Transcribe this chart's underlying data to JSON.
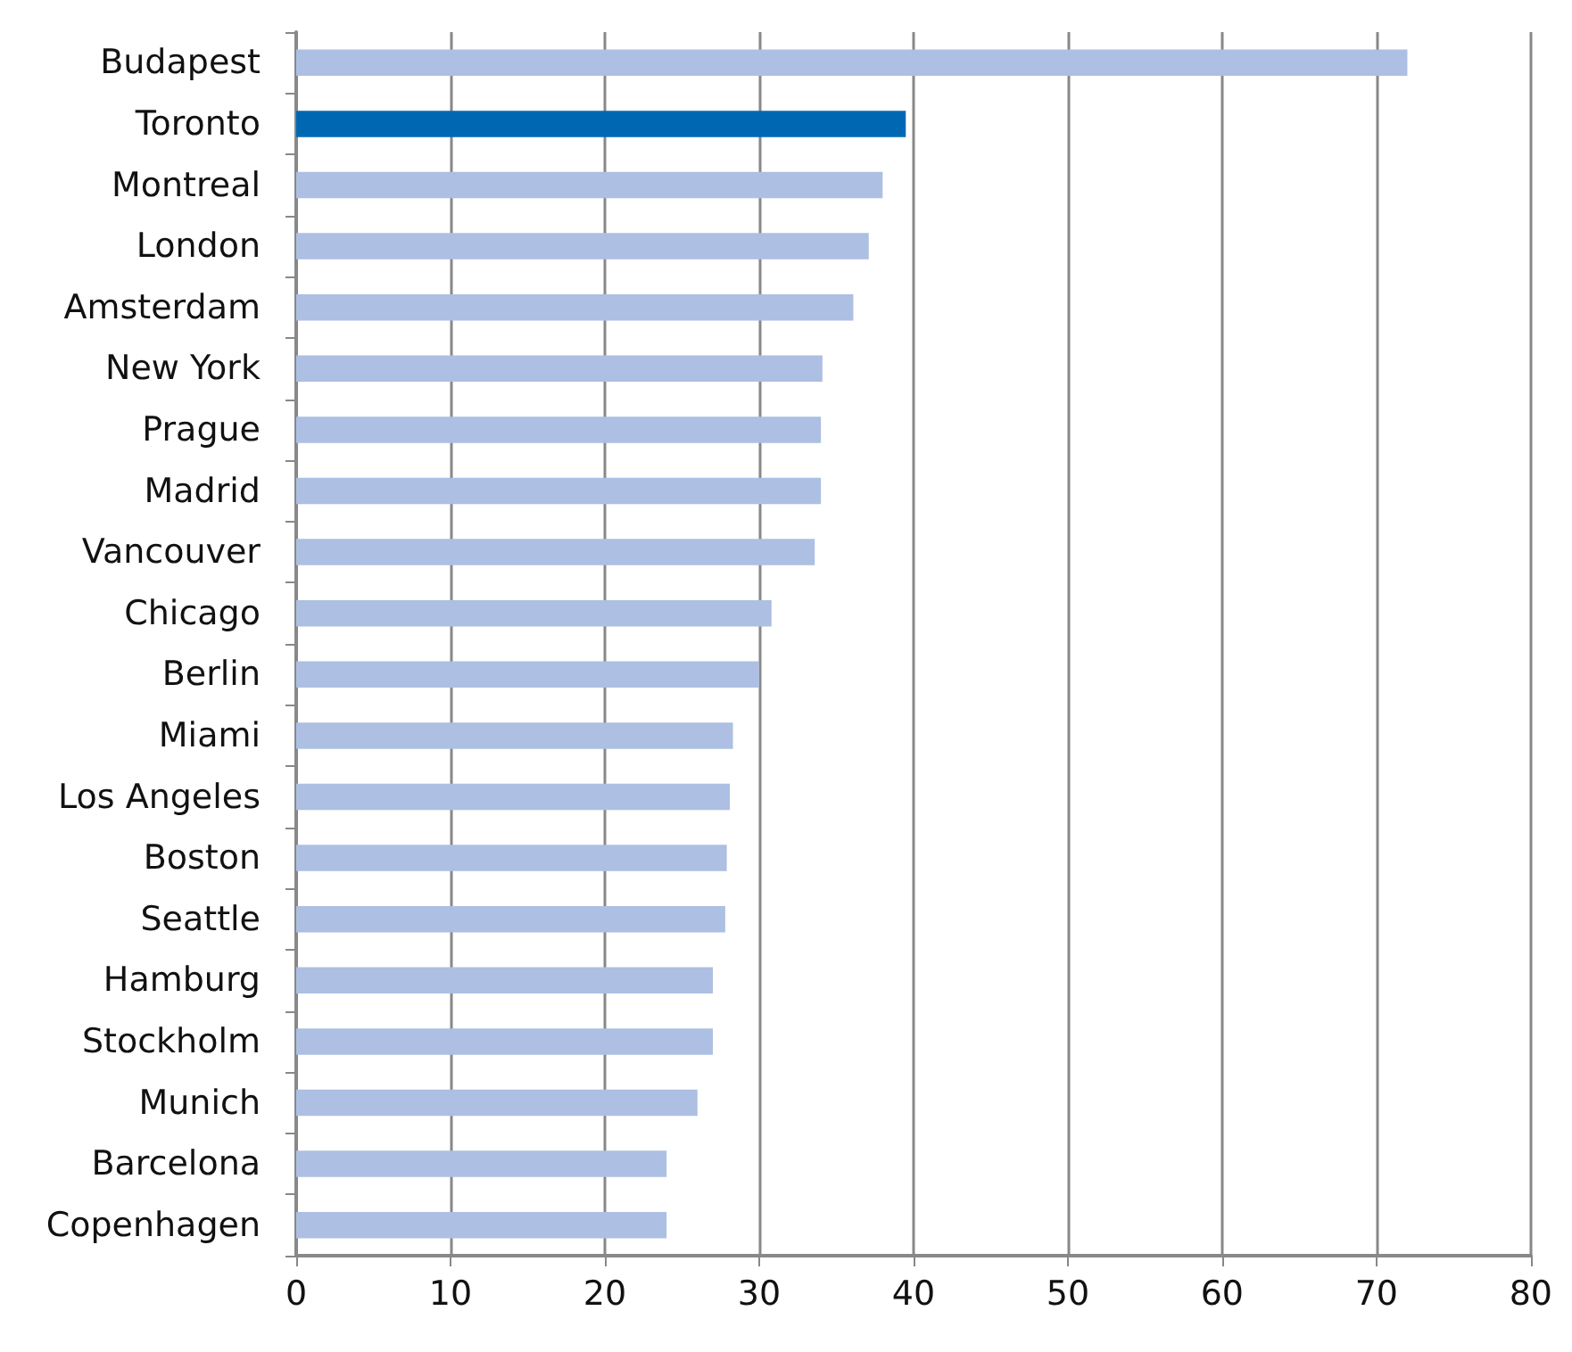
{
  "chart_data": {
    "type": "bar",
    "orientation": "horizontal",
    "categories": [
      "Budapest",
      "Toronto",
      "Montreal",
      "London",
      "Amsterdam",
      "New York",
      "Prague",
      "Madrid",
      "Vancouver",
      "Chicago",
      "Berlin",
      "Miami",
      "Los Angeles",
      "Boston",
      "Seattle",
      "Hamburg",
      "Stockholm",
      "Munich",
      "Barcelona",
      "Copenhagen"
    ],
    "values": [
      72,
      39.5,
      38,
      37.1,
      36.1,
      34.1,
      34,
      34,
      33.6,
      30.8,
      30,
      28.3,
      28.1,
      27.9,
      27.8,
      27,
      27,
      26,
      24,
      24
    ],
    "colors": [
      "#adbfe2",
      "#0068b3",
      "#adbfe2",
      "#adbfe2",
      "#adbfe2",
      "#adbfe2",
      "#adbfe2",
      "#adbfe2",
      "#adbfe2",
      "#adbfe2",
      "#adbfe2",
      "#adbfe2",
      "#adbfe2",
      "#adbfe2",
      "#adbfe2",
      "#adbfe2",
      "#adbfe2",
      "#adbfe2",
      "#adbfe2",
      "#adbfe2"
    ],
    "xlim": [
      0,
      80
    ],
    "xticks": [
      0,
      10,
      20,
      30,
      40,
      50,
      60,
      70,
      80
    ],
    "grid": "x"
  }
}
